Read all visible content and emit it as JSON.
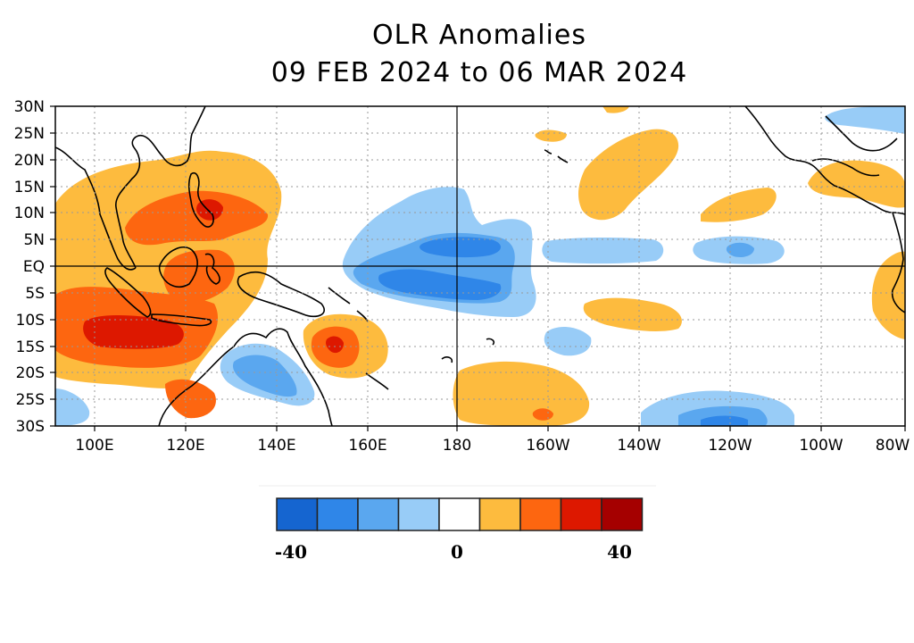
{
  "title": {
    "line1": "OLR Anomalies",
    "line2": "09 FEB 2024 to 06 MAR 2024"
  },
  "axes": {
    "lon_labels": [
      "100E",
      "120E",
      "140E",
      "160E",
      "180",
      "160W",
      "140W",
      "120W",
      "100W",
      "80W"
    ],
    "lat_labels": [
      "30N",
      "25N",
      "20N",
      "15N",
      "10N",
      "5N",
      "EQ",
      "5S",
      "10S",
      "15S",
      "20S",
      "25S",
      "30S"
    ]
  },
  "legend": {
    "colors": [
      "#1565d0",
      "#2f86e8",
      "#5aa7ef",
      "#98ccf7",
      "#ffffff",
      "#fdbb3e",
      "#fd6610",
      "#dd1800",
      "#a50000"
    ],
    "labels": [
      "-40",
      "0",
      "40"
    ]
  },
  "colors": {
    "strong_negative": "#1565d0",
    "negative": "#2f86e8",
    "moderate_negative": "#5aa7ef",
    "weak_negative": "#98ccf7",
    "weak_positive": "#fdbb3e",
    "moderate_positive": "#fd6610",
    "positive": "#dd1800",
    "strong_positive": "#a50000"
  }
}
